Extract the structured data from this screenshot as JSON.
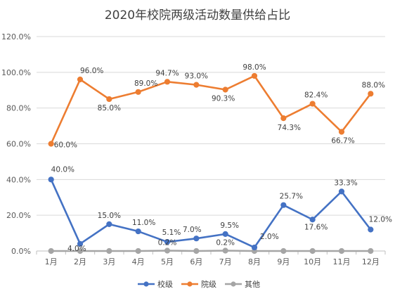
{
  "chart_data": {
    "type": "line",
    "title": "2020年校院两级活动数量供给占比",
    "categories": [
      "1月",
      "2月",
      "3月",
      "4月",
      "5月",
      "6月",
      "7月",
      "8月",
      "9月",
      "10月",
      "11月",
      "12月"
    ],
    "ylim": [
      0,
      120
    ],
    "yticks": [
      "0.0%",
      "20.0%",
      "40.0%",
      "60.0%",
      "80.0%",
      "100.0%",
      "120.0%"
    ],
    "ytick_values": [
      0,
      20,
      40,
      60,
      80,
      100,
      120
    ],
    "grid": true,
    "legend_position": "bottom",
    "series": [
      {
        "name": "校级",
        "color": "#4472C4",
        "values": [
          40.0,
          4.0,
          15.0,
          11.0,
          5.1,
          7.0,
          9.5,
          2.0,
          25.7,
          17.6,
          33.3,
          12.0
        ],
        "labels": [
          "40.0%",
          "4.0%",
          "15.0%",
          "11.0%",
          "5.1%",
          "7.0%",
          "9.5%",
          "2.0%",
          "25.7%",
          "17.6%",
          "33.3%",
          "12.0%"
        ]
      },
      {
        "name": "院级",
        "color": "#ED7D31",
        "values": [
          60.0,
          96.0,
          85.0,
          89.0,
          94.7,
          93.0,
          90.3,
          98.0,
          74.3,
          82.4,
          66.7,
          88.0
        ],
        "labels": [
          "60.0%",
          "96.0%",
          "85.0%",
          "89.0%",
          "94.7%",
          "93.0%",
          "90.3%",
          "98.0%",
          "74.3%",
          "82.4%",
          "66.7%",
          "88.0%"
        ]
      },
      {
        "name": "其他",
        "color": "#A5A5A5",
        "values": [
          0,
          0,
          0,
          0,
          0.2,
          0,
          0.2,
          0,
          0,
          0,
          0,
          0
        ],
        "labels": [
          "",
          "",
          "",
          "",
          "0.2%",
          "",
          "0.2%",
          "",
          "",
          "",
          "",
          ""
        ]
      }
    ]
  }
}
